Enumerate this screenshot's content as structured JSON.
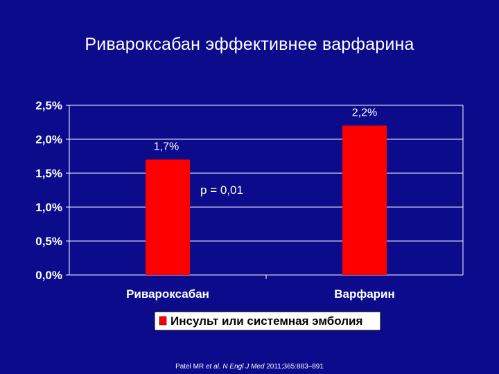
{
  "slide": {
    "title": "Ривароксабан эффективнее варфарина",
    "reference": {
      "pre": "Patel MR ",
      "italic": "et al. N Engl J Med",
      "post": " 2011;365:883–891"
    }
  },
  "chart_data": {
    "type": "bar",
    "categories": [
      "Ривароксабан",
      "Варфарин"
    ],
    "series": [
      {
        "name": "Инсульт или системная эмболия",
        "values": [
          1.7,
          2.2
        ],
        "color": "#FF0000"
      }
    ],
    "data_labels": [
      "1,7%",
      "2,2%"
    ],
    "y_ticks": [
      {
        "value": 0.0,
        "label": "0,0%"
      },
      {
        "value": 0.5,
        "label": "0,5%"
      },
      {
        "value": 1.0,
        "label": "1,0%"
      },
      {
        "value": 1.5,
        "label": "1,5%"
      },
      {
        "value": 2.0,
        "label": "2,0%"
      },
      {
        "value": 2.5,
        "label": "2,5%"
      }
    ],
    "ylim": [
      0,
      2.5
    ],
    "grid": true,
    "legend_position": "bottom",
    "annotation": "p = 0,01",
    "colors": {
      "background": "#0B0B8C",
      "bar": "#FF0000",
      "text": "#FFFFFF",
      "grid": "#FFFFFF"
    }
  }
}
